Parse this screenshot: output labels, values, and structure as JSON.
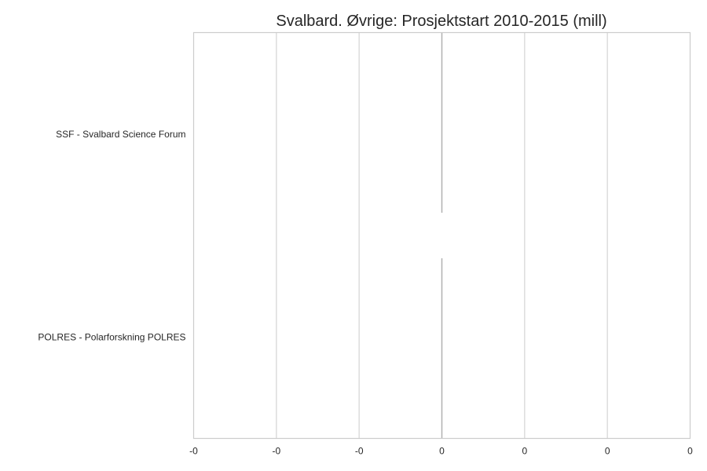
{
  "chart_data": {
    "type": "bar",
    "orientation": "horizontal",
    "title": "Svalbard. Øvrige: Prosjektstart 2010-2015 (mill)",
    "xlabel": "",
    "ylabel": "",
    "categories": [
      "SSF - Svalbard Science Forum",
      "POLRES - Polarforskning POLRES"
    ],
    "values": [
      0,
      0
    ],
    "xlim": [
      -0.3,
      0.3
    ],
    "x_ticks": [
      -0.3,
      -0.2,
      -0.1,
      0,
      0.1,
      0.2,
      0.3
    ],
    "x_tick_labels": [
      "-0",
      "-0",
      "-0",
      "0",
      "0",
      "0",
      "0"
    ],
    "grid": true,
    "legend": "none",
    "colors": {
      "grid": "#d5d5d5",
      "frame": "#cccccc",
      "zero_line": "#b0b0b0",
      "bar": "#4c72b0"
    }
  }
}
